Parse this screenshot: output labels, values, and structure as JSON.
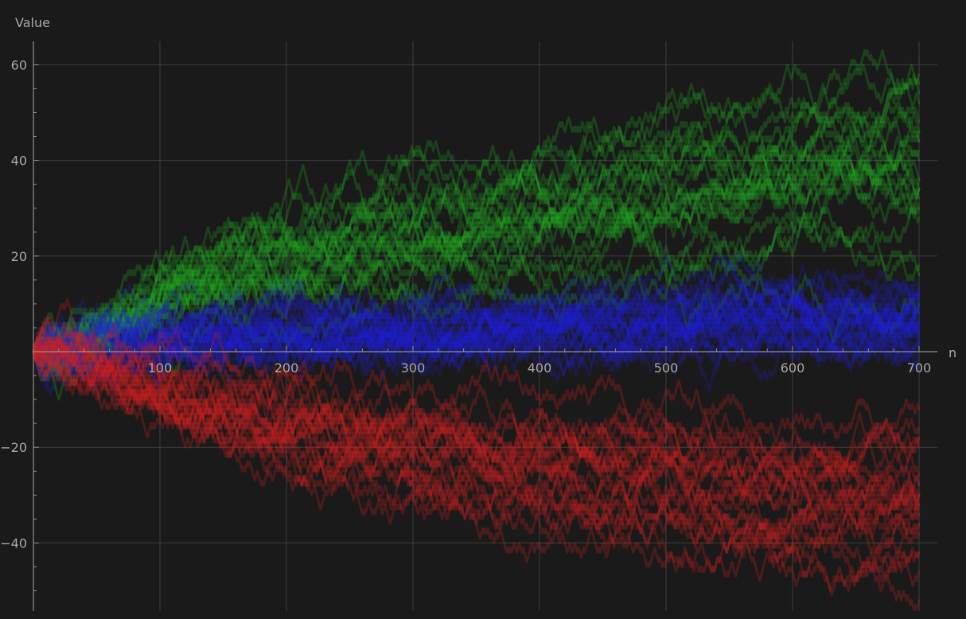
{
  "chart_data": {
    "type": "line",
    "title": "",
    "xlabel": "n",
    "ylabel": "Value",
    "xlim": [
      0,
      700
    ],
    "ylim": [
      -53,
      65
    ],
    "x_ticks": [
      100,
      200,
      300,
      400,
      500,
      600,
      700
    ],
    "y_ticks": [
      -40,
      -20,
      20,
      40,
      60
    ],
    "grid": true,
    "legend": "none",
    "steps": 700,
    "series": [
      {
        "color": "#22aa22",
        "opacity": 0.28,
        "count": 24,
        "checkpoints": [
          [
            0,
            0
          ],
          [
            50,
            6
          ],
          [
            100,
            12
          ],
          [
            200,
            18
          ],
          [
            300,
            22
          ],
          [
            400,
            26
          ],
          [
            500,
            30
          ],
          [
            600,
            33
          ],
          [
            700,
            35
          ]
        ]
      },
      {
        "color": "#2222dd",
        "opacity": 0.22,
        "count": 30,
        "checkpoints": [
          [
            0,
            0
          ],
          [
            50,
            1
          ],
          [
            100,
            2
          ],
          [
            200,
            3
          ],
          [
            300,
            4
          ],
          [
            400,
            5
          ],
          [
            500,
            6
          ],
          [
            600,
            6
          ],
          [
            700,
            7
          ]
        ]
      },
      {
        "color": "#cc2222",
        "opacity": 0.28,
        "count": 24,
        "checkpoints": [
          [
            0,
            0
          ],
          [
            50,
            -6
          ],
          [
            100,
            -12
          ],
          [
            200,
            -17
          ],
          [
            300,
            -22
          ],
          [
            400,
            -25
          ],
          [
            500,
            -28
          ],
          [
            600,
            -31
          ],
          [
            700,
            -33
          ]
        ]
      }
    ]
  }
}
